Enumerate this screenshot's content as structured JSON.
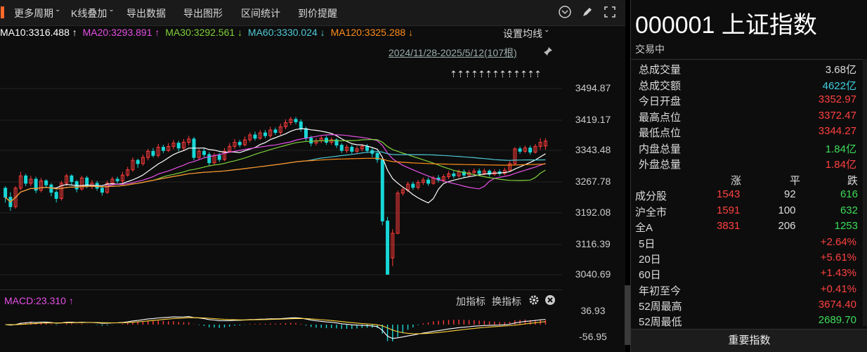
{
  "toolbar": {
    "items": [
      "更多周期",
      "K线叠加",
      "导出数据",
      "导出图形",
      "区间统计",
      "到价提醒"
    ]
  },
  "ma": {
    "ma10": "MA10:3316.488 ↑",
    "ma20": "MA20:3293.891 ↑",
    "ma30": "MA30:3292.561 ↓",
    "ma60": "MA60:3330.024 ↓",
    "ma120": "MA120:3325.288 ↓",
    "set_label": "设置均线 ˇ"
  },
  "range_label": "2024/11/28-2025/5/12(107根)",
  "price_labels": [
    "3494.87",
    "3419.17",
    "3343.48",
    "3267.78",
    "3192.08",
    "3116.39",
    "3040.69"
  ],
  "low_marker": "3040.69",
  "macd": {
    "label": "MACD:23.310 ↑",
    "add_indicator": "加指标",
    "switch_indicator": "换指标",
    "top": "36.93",
    "bottom": "-56.95"
  },
  "colors": {
    "up": "#ff3b3b",
    "down": "#19d6d6",
    "ma10": "#ffffff",
    "ma20": "#e64fe6",
    "ma30": "#7fd13b",
    "ma60": "#4fc8d6",
    "ma120": "#ff8c1a"
  },
  "panel": {
    "title": "000001 上证指数",
    "status": "交易中",
    "stats": [
      {
        "label": "总成交量",
        "value": "3.68亿",
        "color": "#dddddd"
      },
      {
        "label": "总成交额",
        "value": "4622亿",
        "color": "#3fd0e0"
      },
      {
        "label": "今日开盘",
        "value": "3352.97",
        "color": "#ff4040"
      },
      {
        "label": "最高点位",
        "value": "3372.47",
        "color": "#ff4040"
      },
      {
        "label": "最低点位",
        "value": "3344.27",
        "color": "#ff4040"
      },
      {
        "label": "内盘总量",
        "value": "1.84亿",
        "color": "#3ddc5a"
      },
      {
        "label": "外盘总量",
        "value": "1.84亿",
        "color": "#ff4040"
      }
    ],
    "breadth_header": {
      "up": "涨",
      "flat": "平",
      "down": "跌"
    },
    "breadth": [
      {
        "label": "成分股",
        "up": "1543",
        "flat": "92",
        "down": "616"
      },
      {
        "label": "沪全市",
        "up": "1591",
        "flat": "100",
        "down": "632"
      },
      {
        "label": "全A",
        "up": "3831",
        "flat": "206",
        "down": "1253"
      }
    ],
    "perf": [
      {
        "label": "5日",
        "value": "+2.64%",
        "color": "#ff4040"
      },
      {
        "label": "20日",
        "value": "+5.61%",
        "color": "#ff4040"
      },
      {
        "label": "60日",
        "value": "+1.43%",
        "color": "#ff4040"
      },
      {
        "label": "年初至今",
        "value": "+0.41%",
        "color": "#ff4040"
      },
      {
        "label": "52周最高",
        "value": "3674.40",
        "color": "#ff4040"
      },
      {
        "label": "52周最低",
        "value": "2689.70",
        "color": "#3ddc5a"
      }
    ],
    "bottom_button": "重要指数"
  },
  "chart_data": {
    "type": "candlestick",
    "x": "2024/11/28-2025/5/12",
    "ylim": [
      3040.69,
      3494.87
    ],
    "candles": [
      [
        3250,
        3228,
        3255,
        3215
      ],
      [
        3228,
        3205,
        3240,
        3195
      ],
      [
        3205,
        3250,
        3255,
        3200
      ],
      [
        3250,
        3280,
        3290,
        3245
      ],
      [
        3280,
        3262,
        3285,
        3255
      ],
      [
        3262,
        3272,
        3280,
        3255
      ],
      [
        3272,
        3245,
        3278,
        3238
      ],
      [
        3245,
        3268,
        3275,
        3240
      ],
      [
        3268,
        3258,
        3272,
        3250
      ],
      [
        3258,
        3240,
        3262,
        3230
      ],
      [
        3240,
        3225,
        3245,
        3215
      ],
      [
        3225,
        3262,
        3268,
        3220
      ],
      [
        3262,
        3280,
        3285,
        3255
      ],
      [
        3280,
        3266,
        3284,
        3258
      ],
      [
        3266,
        3248,
        3270,
        3240
      ],
      [
        3248,
        3275,
        3280,
        3244
      ],
      [
        3275,
        3255,
        3280,
        3250
      ],
      [
        3255,
        3262,
        3270,
        3248
      ],
      [
        3262,
        3250,
        3268,
        3244
      ],
      [
        3250,
        3240,
        3256,
        3232
      ],
      [
        3240,
        3262,
        3268,
        3236
      ],
      [
        3262,
        3272,
        3278,
        3256
      ],
      [
        3272,
        3268,
        3278,
        3262
      ],
      [
        3268,
        3282,
        3290,
        3262
      ],
      [
        3282,
        3295,
        3302,
        3278
      ],
      [
        3295,
        3318,
        3325,
        3290
      ],
      [
        3318,
        3310,
        3322,
        3300
      ],
      [
        3310,
        3325,
        3332,
        3305
      ],
      [
        3325,
        3340,
        3346,
        3318
      ],
      [
        3340,
        3330,
        3348,
        3325
      ],
      [
        3330,
        3350,
        3358,
        3325
      ],
      [
        3350,
        3342,
        3356,
        3336
      ],
      [
        3342,
        3352,
        3360,
        3338
      ],
      [
        3352,
        3360,
        3368,
        3345
      ],
      [
        3360,
        3348,
        3366,
        3340
      ],
      [
        3348,
        3362,
        3370,
        3342
      ],
      [
        3362,
        3370,
        3378,
        3355
      ],
      [
        3370,
        3325,
        3375,
        3318
      ],
      [
        3325,
        3340,
        3346,
        3320
      ],
      [
        3340,
        3332,
        3348,
        3326
      ],
      [
        3332,
        3312,
        3338,
        3305
      ],
      [
        3312,
        3330,
        3336,
        3306
      ],
      [
        3330,
        3320,
        3336,
        3314
      ],
      [
        3320,
        3340,
        3348,
        3316
      ],
      [
        3340,
        3352,
        3360,
        3336
      ],
      [
        3352,
        3362,
        3370,
        3346
      ],
      [
        3362,
        3356,
        3368,
        3350
      ],
      [
        3356,
        3368,
        3376,
        3352
      ],
      [
        3368,
        3380,
        3386,
        3362
      ],
      [
        3380,
        3372,
        3388,
        3366
      ],
      [
        3372,
        3385,
        3392,
        3368
      ],
      [
        3385,
        3378,
        3392,
        3372
      ],
      [
        3378,
        3392,
        3400,
        3372
      ],
      [
        3392,
        3386,
        3398,
        3380
      ],
      [
        3386,
        3400,
        3408,
        3380
      ],
      [
        3400,
        3410,
        3418,
        3394
      ],
      [
        3410,
        3418,
        3424,
        3404
      ],
      [
        3418,
        3412,
        3424,
        3406
      ],
      [
        3412,
        3395,
        3418,
        3388
      ],
      [
        3395,
        3372,
        3400,
        3365
      ],
      [
        3372,
        3360,
        3378,
        3352
      ],
      [
        3360,
        3366,
        3372,
        3354
      ],
      [
        3366,
        3372,
        3378,
        3360
      ],
      [
        3372,
        3362,
        3378,
        3356
      ],
      [
        3362,
        3368,
        3374,
        3356
      ],
      [
        3368,
        3355,
        3372,
        3348
      ],
      [
        3355,
        3342,
        3360,
        3336
      ],
      [
        3342,
        3350,
        3356,
        3336
      ],
      [
        3350,
        3340,
        3356,
        3334
      ],
      [
        3340,
        3346,
        3352,
        3334
      ],
      [
        3346,
        3352,
        3358,
        3340
      ],
      [
        3352,
        3342,
        3358,
        3336
      ],
      [
        3342,
        3335,
        3348,
        3326
      ],
      [
        3335,
        3320,
        3340,
        3312
      ],
      [
        3320,
        3170,
        3322,
        3160
      ],
      [
        3170,
        3040,
        3180,
        3040
      ],
      [
        3080,
        3140,
        3150,
        3060
      ],
      [
        3140,
        3238,
        3244,
        3138
      ],
      [
        3238,
        3246,
        3252,
        3232
      ],
      [
        3246,
        3260,
        3266,
        3240
      ],
      [
        3260,
        3252,
        3266,
        3246
      ],
      [
        3252,
        3264,
        3270,
        3246
      ],
      [
        3264,
        3270,
        3276,
        3258
      ],
      [
        3270,
        3262,
        3276,
        3256
      ],
      [
        3262,
        3275,
        3280,
        3258
      ],
      [
        3275,
        3270,
        3282,
        3264
      ],
      [
        3270,
        3278,
        3284,
        3265
      ],
      [
        3278,
        3285,
        3292,
        3272
      ],
      [
        3285,
        3280,
        3292,
        3274
      ],
      [
        3280,
        3290,
        3296,
        3276
      ],
      [
        3290,
        3282,
        3296,
        3276
      ],
      [
        3282,
        3288,
        3294,
        3278
      ],
      [
        3288,
        3292,
        3298,
        3282
      ],
      [
        3292,
        3286,
        3298,
        3280
      ],
      [
        3286,
        3292,
        3298,
        3282
      ],
      [
        3292,
        3284,
        3296,
        3278
      ],
      [
        3284,
        3290,
        3296,
        3280
      ],
      [
        3290,
        3286,
        3296,
        3280
      ],
      [
        3286,
        3294,
        3300,
        3282
      ],
      [
        3294,
        3310,
        3316,
        3290
      ],
      [
        3310,
        3346,
        3350,
        3306
      ],
      [
        3346,
        3340,
        3352,
        3334
      ],
      [
        3340,
        3348,
        3354,
        3336
      ],
      [
        3348,
        3338,
        3354,
        3332
      ],
      [
        3338,
        3352,
        3358,
        3334
      ],
      [
        3352,
        3362,
        3372,
        3344
      ],
      [
        3353,
        3365,
        3372,
        3344
      ]
    ]
  }
}
